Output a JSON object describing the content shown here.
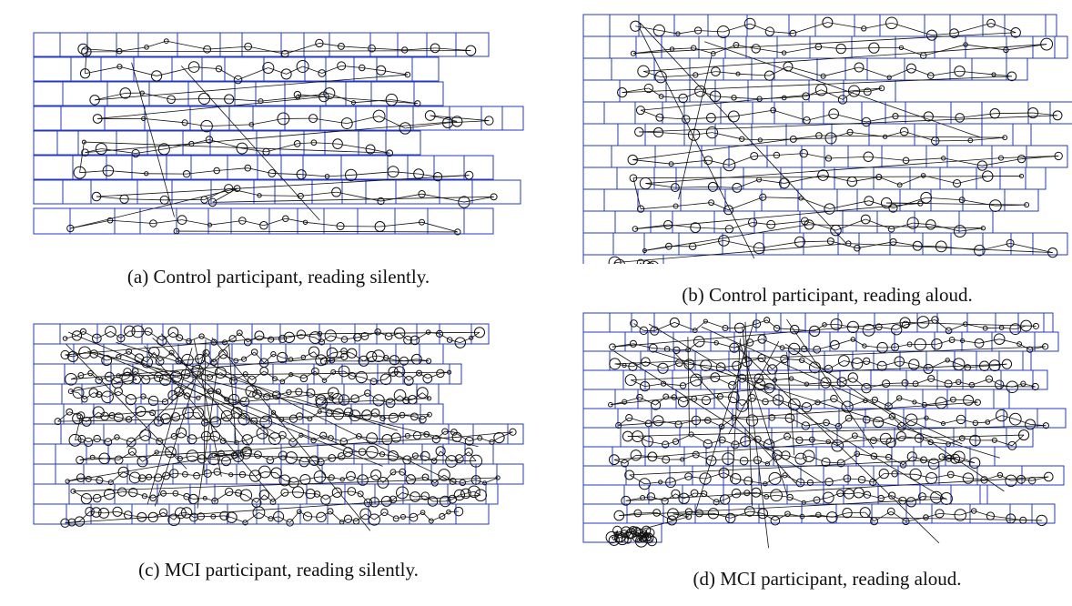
{
  "figure": {
    "colors": {
      "box": "#2438c8",
      "trace": "#111111"
    },
    "panels": [
      {
        "id": "a",
        "caption": "(a) Control participant, reading silently.",
        "group": "Control",
        "mode": "reading silently",
        "density": "low"
      },
      {
        "id": "b",
        "caption": "(b) Control participant, reading aloud.",
        "group": "Control",
        "mode": "reading aloud",
        "density": "low"
      },
      {
        "id": "c",
        "caption": "(c) MCI participant, reading silently.",
        "group": "MCI",
        "mode": "reading silently",
        "density": "high"
      },
      {
        "id": "d",
        "caption": "(d) MCI participant, reading aloud.",
        "group": "MCI",
        "mode": "reading aloud",
        "density": "high"
      }
    ]
  }
}
